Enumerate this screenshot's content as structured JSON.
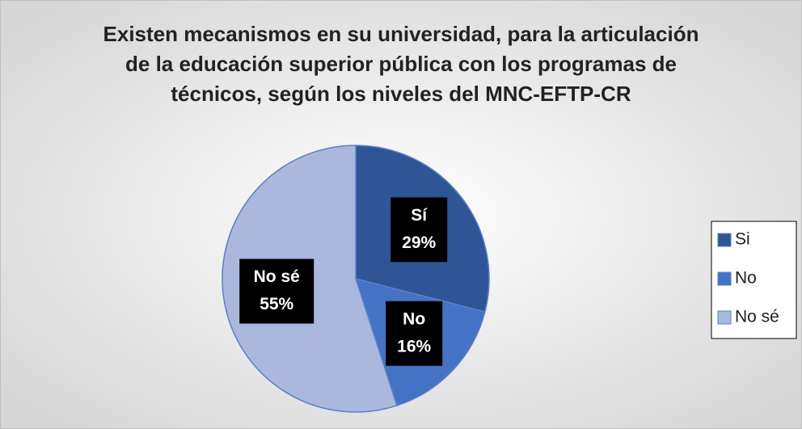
{
  "chart_data": {
    "type": "pie",
    "title": [
      "Existen mecanismos en su universidad, para la articulación",
      "de la educación superior pública con los programas de",
      "técnicos, según los niveles del MNC-EFTP-CR"
    ],
    "categories": [
      "Si",
      "No",
      "No sé"
    ],
    "label_categories": [
      "Sí",
      "No",
      "No sé"
    ],
    "values": [
      29,
      16,
      55
    ],
    "value_labels": [
      "29%",
      "16%",
      "55%"
    ],
    "colors": [
      "#2f5597",
      "#4472c4",
      "#a9b8dc"
    ],
    "legend": "right"
  }
}
